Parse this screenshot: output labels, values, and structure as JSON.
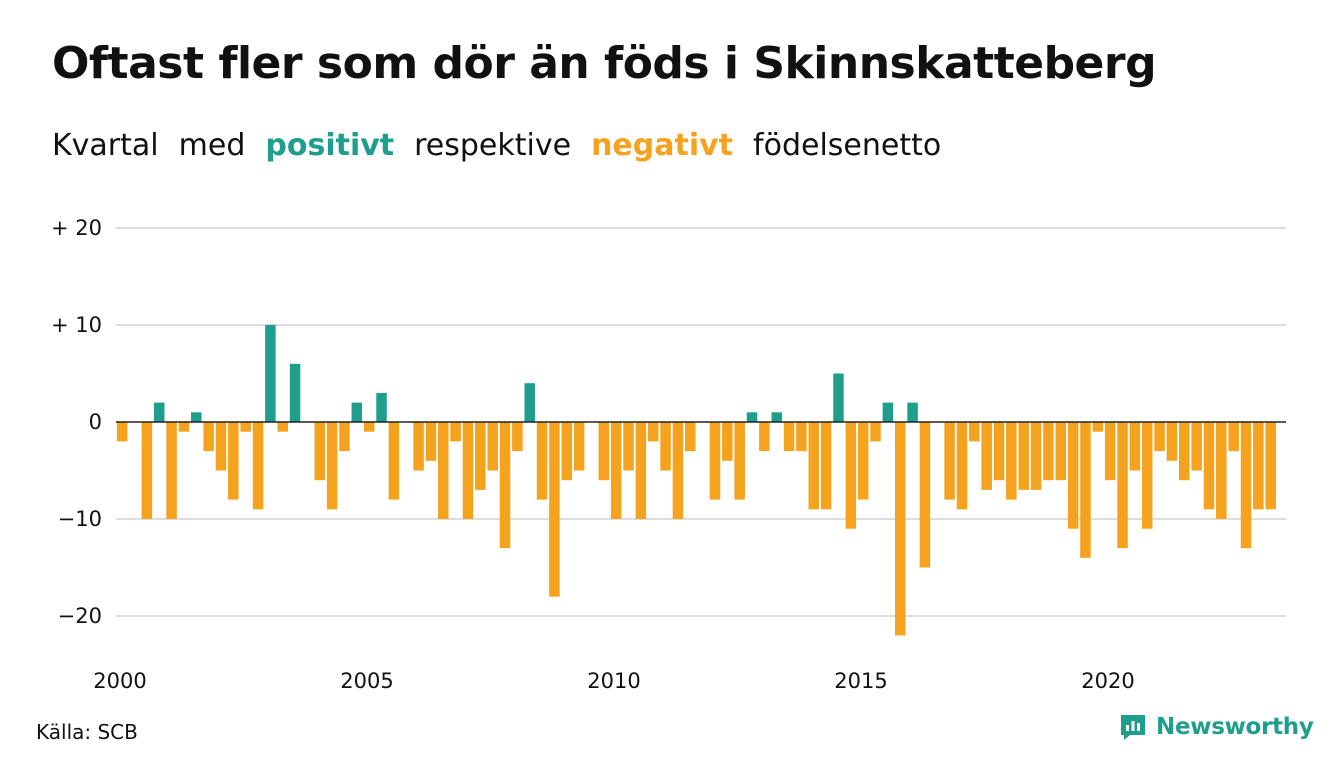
{
  "title": "Oftast fler som dör än föds i Skinnskatteberg",
  "subtitle": {
    "w1": "Kvartal",
    "w2": "med",
    "positive": "positivt",
    "w3": "respektive",
    "negative": "negativt",
    "w4": "födelsenetto"
  },
  "source": "Källa: SCB",
  "brand": {
    "name": "Newsworthy",
    "icon": "newsworthy-logo-icon"
  },
  "colors": {
    "positive": "#1f9e8e",
    "negative": "#f5a21e",
    "grid": "#dddddd",
    "text": "#111111"
  },
  "chart_data": {
    "type": "bar",
    "title": "Oftast fler som dör än föds i Skinnskatteberg",
    "subtitle": "Kvartal med positivt respektive negativt födelsenetto",
    "x_start": 2000,
    "x_ticks": [
      "2000",
      "2005",
      "2010",
      "2015",
      "2020"
    ],
    "y_ticks": [
      {
        "value": 20,
        "label": "+ 20"
      },
      {
        "value": 10,
        "label": "+ 10"
      },
      {
        "value": 0,
        "label": "0"
      },
      {
        "value": -10,
        "label": "−10"
      },
      {
        "value": -20,
        "label": "−20"
      }
    ],
    "ylim": [
      -25,
      20
    ],
    "grid": true,
    "categories": [
      "2000 Q1",
      "2000 Q2",
      "2000 Q3",
      "2000 Q4",
      "2001 Q1",
      "2001 Q2",
      "2001 Q3",
      "2001 Q4",
      "2002 Q1",
      "2002 Q2",
      "2002 Q3",
      "2002 Q4",
      "2003 Q1",
      "2003 Q2",
      "2003 Q3",
      "2003 Q4",
      "2004 Q1",
      "2004 Q2",
      "2004 Q3",
      "2004 Q4",
      "2005 Q1",
      "2005 Q2",
      "2005 Q3",
      "2005 Q4",
      "2006 Q1",
      "2006 Q2",
      "2006 Q3",
      "2006 Q4",
      "2007 Q1",
      "2007 Q2",
      "2007 Q3",
      "2007 Q4",
      "2008 Q1",
      "2008 Q2",
      "2008 Q3",
      "2008 Q4",
      "2009 Q1",
      "2009 Q2",
      "2009 Q3",
      "2009 Q4",
      "2010 Q1",
      "2010 Q2",
      "2010 Q3",
      "2010 Q4",
      "2011 Q1",
      "2011 Q2",
      "2011 Q3",
      "2011 Q4",
      "2012 Q1",
      "2012 Q2",
      "2012 Q3",
      "2012 Q4",
      "2013 Q1",
      "2013 Q2",
      "2013 Q3",
      "2013 Q4",
      "2014 Q1",
      "2014 Q2",
      "2014 Q3",
      "2014 Q4",
      "2015 Q1",
      "2015 Q2",
      "2015 Q3",
      "2015 Q4",
      "2016 Q1",
      "2016 Q2",
      "2016 Q3",
      "2016 Q4",
      "2017 Q1",
      "2017 Q2",
      "2017 Q3",
      "2017 Q4",
      "2018 Q1",
      "2018 Q2",
      "2018 Q3",
      "2018 Q4",
      "2019 Q1",
      "2019 Q2",
      "2019 Q3",
      "2019 Q4",
      "2020 Q1",
      "2020 Q2",
      "2020 Q3",
      "2020 Q4",
      "2021 Q1",
      "2021 Q2",
      "2021 Q3",
      "2021 Q4",
      "2022 Q1",
      "2022 Q2",
      "2022 Q3",
      "2022 Q4",
      "2023 Q1",
      "2023 Q2",
      "2023 Q3",
      "2023 Q4"
    ],
    "values": [
      -2,
      0,
      -10,
      2,
      -10,
      -1,
      1,
      -3,
      -5,
      -8,
      -1,
      -9,
      10,
      -1,
      6,
      0,
      -6,
      -9,
      -3,
      2,
      -1,
      3,
      -8,
      0,
      -5,
      -4,
      -10,
      -2,
      -10,
      -7,
      -5,
      -13,
      -3,
      4,
      -8,
      -18,
      -6,
      -5,
      0,
      -6,
      -10,
      -5,
      -10,
      -2,
      -5,
      -10,
      -3,
      0,
      -8,
      -4,
      -8,
      1,
      -3,
      1,
      -3,
      -3,
      -9,
      -9,
      5,
      -11,
      -8,
      -2,
      2,
      -22,
      2,
      -15,
      0,
      -8,
      -9,
      -2,
      -7,
      -6,
      -8,
      -7,
      -7,
      -6,
      -6,
      -11,
      -14,
      -1,
      -6,
      -13,
      -5,
      -11,
      -3,
      -4,
      -6,
      -5,
      -9,
      -10,
      -3,
      -13,
      -9,
      -9,
      0,
      0
    ]
  }
}
